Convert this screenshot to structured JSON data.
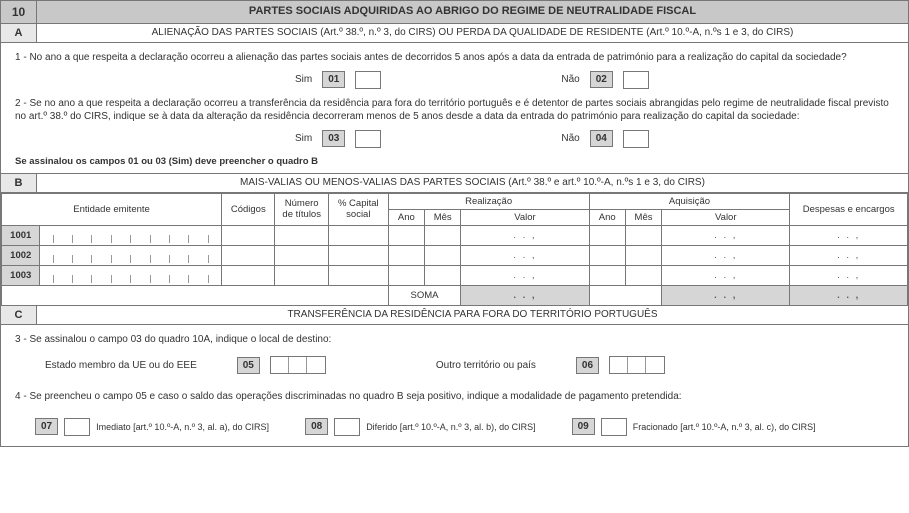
{
  "section10": {
    "number": "10",
    "title": "PARTES SOCIAIS ADQUIRIDAS AO ABRIGO DO REGIME DE NEUTRALIDADE FISCAL"
  },
  "sectionA": {
    "letter": "A",
    "title": "ALIENAÇÃO DAS PARTES SOCIAIS (Art.º 38.º, n.º 3, do CIRS) OU PERDA DA QUALIDADE DE RESIDENTE (Art.º 10.º-A, n.ºs 1 e 3, do CIRS)",
    "q1": "1 - No ano a que respeita a declaração ocorreu a alienação das partes sociais antes de decorridos 5 anos após a data da entrada de património para a realização do capital da sociedade?",
    "q2": "2 - Se no ano a que respeita a declaração ocorreu a transferência da residência para fora do território português e é detentor de partes sociais abrangidas pelo regime de neutralidade fiscal previsto no art.º 38.º do CIRS, indique se à data da alteração da residência decorreram menos de 5 anos desde a data da entrada do património para realização do capital da sociedade:",
    "sim": "Sim",
    "nao": "Não",
    "code01": "01",
    "code02": "02",
    "code03": "03",
    "code04": "04",
    "note": "Se assinalou os campos 01 ou 03 (Sim) deve preencher o quadro B"
  },
  "sectionB": {
    "letter": "B",
    "title": "MAIS-VALIAS OU MENOS-VALIAS DAS PARTES SOCIAIS (Art.º 38.º e art.º 10.º-A, n.ºs 1 e 3, do CIRS)",
    "headers": {
      "entidade": "Entidade emitente",
      "codigos": "Códigos",
      "numero": "Número de títulos",
      "capital": "% Capital social",
      "realizacao": "Realização",
      "aquisicao": "Aquisição",
      "ano": "Ano",
      "mes": "Mês",
      "valor": "Valor",
      "despesas": "Despesas e encargos"
    },
    "rows": [
      "1001",
      "1002",
      "1003"
    ],
    "valor_pattern": ".          .          ,",
    "soma": "SOMA"
  },
  "sectionC": {
    "letter": "C",
    "title": "TRANSFERÊNCIA DA RESIDÊNCIA PARA FORA DO TERRITÓRIO PORTUGUÊS",
    "q3": "3 - Se assinalou o campo 03 do quadro 10A, indique o local de destino:",
    "estado": "Estado membro da UE ou do EEE",
    "outro": "Outro território ou país",
    "code05": "05",
    "code06": "06",
    "q4": "4 - Se preencheu o campo 05 e caso o saldo das operações discriminadas no quadro B seja positivo, indique a modalidade de pagamento pretendida:",
    "code07": "07",
    "opt07": "Imediato [art.º 10.º-A, n.º 3,  al. a), do CIRS]",
    "code08": "08",
    "opt08": "Diferido [art.º 10.º-A, n.º 3,  al. b), do CIRS]",
    "code09": "09",
    "opt09": "Fracionado [art.º 10.º-A, n.º 3,  al. c), do CIRS]"
  }
}
